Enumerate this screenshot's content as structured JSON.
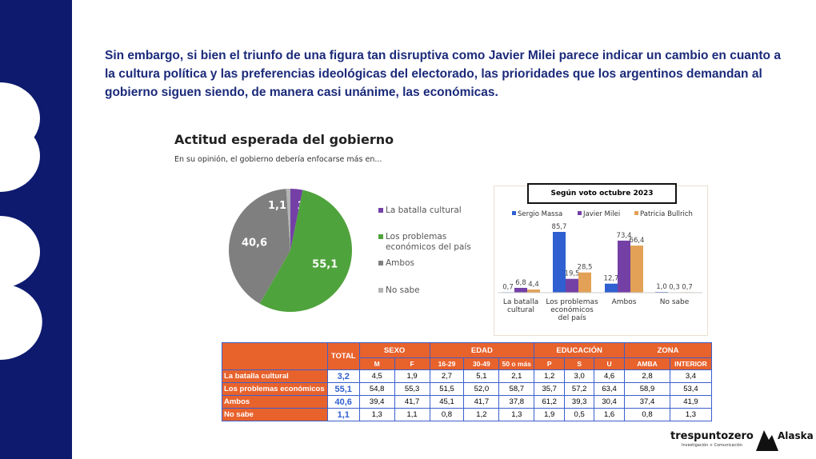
{
  "paragraph": "Sin embargo, si bien el triunfo de una figura tan disruptiva como Javier Milei parece indicar un cambio en cuanto a la cultura política y las preferencias ideológicas del electorado, las prioridades que los argentinos demandan al gobierno siguen siendo, de manera casi unánime, las económicas.",
  "chart_data": [
    {
      "type": "pie",
      "title": "Actitud esperada del gobierno",
      "subtitle": "En su opinión, el gobierno debería enfocarse más en...",
      "categories": [
        "La batalla cultural",
        "Los problemas económicos del país",
        "Ambos",
        "No sabe"
      ],
      "values": [
        3.2,
        55.1,
        40.6,
        1.1
      ],
      "value_labels": [
        "3,2",
        "55,1",
        "40,6",
        "1,1"
      ],
      "colors": [
        "#7440a6",
        "#4fa33c",
        "#7f7f7f",
        "#b3b3b3"
      ]
    },
    {
      "type": "bar",
      "title": "Según voto octubre 2023",
      "categories": [
        "La batalla cultural",
        "Los problemas económicos del país",
        "Ambos",
        "No sabe"
      ],
      "series": [
        {
          "name": "Sergio Massa",
          "color": "#2f5fd0",
          "values": [
            0.7,
            85.7,
            12.7,
            1.0
          ],
          "value_labels": [
            "0,7",
            "85,7",
            "12,7",
            "1,0"
          ]
        },
        {
          "name": "Javier Milei",
          "color": "#7440a6",
          "values": [
            6.8,
            19.5,
            73.4,
            0.3
          ],
          "value_labels": [
            "6,8",
            "19,5",
            "73,4",
            "0,3"
          ]
        },
        {
          "name": "Patricia Bullrich",
          "color": "#e2a156",
          "values": [
            4.4,
            28.5,
            66.4,
            0.7
          ],
          "value_labels": [
            "4,4",
            "28,5",
            "66,4",
            "0,7"
          ]
        }
      ]
    }
  ],
  "table": {
    "total": "TOTAL",
    "groups": [
      {
        "label": "SEXO",
        "columns": [
          "M",
          "F"
        ]
      },
      {
        "label": "EDAD",
        "columns": [
          "16-29",
          "30-49",
          "50 o más"
        ]
      },
      {
        "label": "EDUCACIÓN",
        "columns": [
          "P",
          "S",
          "U"
        ]
      },
      {
        "label": "ZONA",
        "columns": [
          "AMBA",
          "INTERIOR"
        ]
      }
    ],
    "rows": [
      {
        "label": "La batalla cultural",
        "cells": [
          "3,2",
          "4,5",
          "1,9",
          "2,7",
          "5,1",
          "2,1",
          "1,2",
          "3,0",
          "4,6",
          "2,8",
          "3,4"
        ]
      },
      {
        "label": "Los problemas económicos",
        "cells": [
          "55,1",
          "54,8",
          "55,3",
          "51,5",
          "52,0",
          "58,7",
          "35,7",
          "57,2",
          "63,4",
          "58,9",
          "53,4"
        ]
      },
      {
        "label": "Ambos",
        "cells": [
          "40,6",
          "39,4",
          "41,7",
          "45,1",
          "41,7",
          "37,8",
          "61,2",
          "39,3",
          "30,4",
          "37,4",
          "41,9"
        ]
      },
      {
        "label": "No sabe",
        "cells": [
          "1,1",
          "1,3",
          "1,1",
          "0,8",
          "1,2",
          "1,3",
          "1,9",
          "0,5",
          "1,6",
          "0,8",
          "1,3"
        ]
      }
    ]
  },
  "logos": [
    {
      "name": "trespuntozero",
      "tagline": "Investigación + Comunicación"
    },
    {
      "name": "Alaska"
    }
  ]
}
